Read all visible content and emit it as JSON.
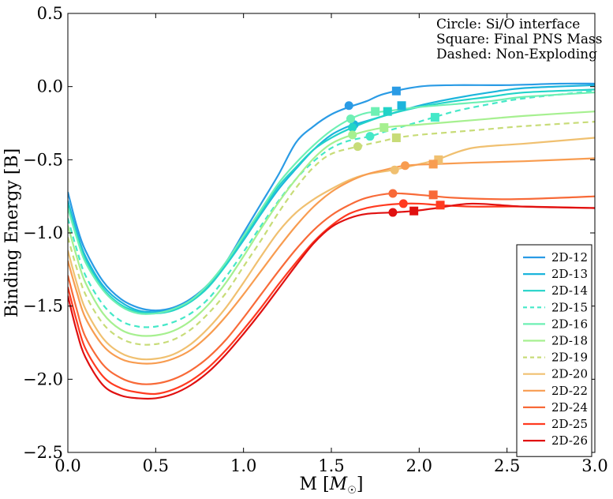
{
  "chart_data": {
    "type": "line",
    "xlabel": "M [",
    "xlabel_unit": "M",
    "xlabel_unit_sub": "☉",
    "xlabel_close": "]",
    "ylabel": "Binding Energy [B]",
    "xlim": [
      0.0,
      3.0
    ],
    "ylim": [
      -2.5,
      0.5
    ],
    "xticks": [
      0.0,
      0.5,
      1.0,
      1.5,
      2.0,
      2.5,
      3.0
    ],
    "xtick_labels": [
      "0.0",
      "0.5",
      "1.0",
      "1.5",
      "2.0",
      "2.5",
      "3.0"
    ],
    "yticks": [
      0.5,
      0.0,
      -0.5,
      -1.0,
      -1.5,
      -2.0,
      -2.5
    ],
    "ytick_labels": [
      "0.5",
      "0.0",
      "−0.5",
      "−1.0",
      "−1.5",
      "−2.0",
      "−2.5"
    ],
    "annotations": [
      "Circle: Si/O interface",
      "Square: Final PNS Mass",
      "Dashed: Non-Exploding"
    ],
    "legend_position": "lower-right",
    "series": [
      {
        "name": "2D-12",
        "color": "#2a9be5",
        "dashed": false,
        "x": [
          0.0,
          0.05,
          0.1,
          0.2,
          0.3,
          0.4,
          0.5,
          0.6,
          0.7,
          0.8,
          0.9,
          1.0,
          1.1,
          1.2,
          1.3,
          1.4,
          1.5,
          1.6,
          1.7,
          1.8,
          2.0,
          2.2,
          2.5,
          2.8,
          3.0
        ],
        "y": [
          -0.72,
          -0.95,
          -1.12,
          -1.33,
          -1.45,
          -1.51,
          -1.53,
          -1.51,
          -1.45,
          -1.35,
          -1.2,
          -1.0,
          -0.8,
          -0.6,
          -0.38,
          -0.27,
          -0.19,
          -0.14,
          -0.1,
          -0.05,
          0.0,
          0.01,
          0.01,
          0.02,
          0.02
        ],
        "marker_circle": [
          1.6,
          -0.13
        ],
        "marker_square": [
          1.87,
          -0.03
        ]
      },
      {
        "name": "2D-13",
        "color": "#1cb5dc",
        "dashed": false,
        "x": [
          0.0,
          0.05,
          0.1,
          0.2,
          0.3,
          0.4,
          0.5,
          0.6,
          0.7,
          0.8,
          0.9,
          1.0,
          1.1,
          1.2,
          1.3,
          1.4,
          1.5,
          1.6,
          1.63,
          1.8,
          2.0,
          2.2,
          2.4,
          2.6,
          3.0
        ],
        "y": [
          -0.78,
          -0.99,
          -1.16,
          -1.36,
          -1.47,
          -1.53,
          -1.54,
          -1.52,
          -1.46,
          -1.36,
          -1.22,
          -1.05,
          -0.87,
          -0.7,
          -0.56,
          -0.43,
          -0.33,
          -0.27,
          -0.26,
          -0.2,
          -0.13,
          -0.08,
          -0.04,
          -0.01,
          0.01
        ],
        "marker_circle": [
          1.63,
          -0.26
        ],
        "marker_square": [
          1.9,
          -0.13
        ]
      },
      {
        "name": "2D-14",
        "color": "#22d3c8",
        "dashed": false,
        "x": [
          0.0,
          0.05,
          0.1,
          0.2,
          0.3,
          0.4,
          0.5,
          0.6,
          0.7,
          0.8,
          0.9,
          1.0,
          1.1,
          1.2,
          1.3,
          1.4,
          1.5,
          1.62,
          1.8,
          2.0,
          2.2,
          2.4,
          2.6,
          3.0
        ],
        "y": [
          -0.8,
          -1.01,
          -1.18,
          -1.38,
          -1.49,
          -1.54,
          -1.55,
          -1.53,
          -1.47,
          -1.37,
          -1.22,
          -1.04,
          -0.86,
          -0.68,
          -0.55,
          -0.43,
          -0.35,
          -0.28,
          -0.2,
          -0.14,
          -0.1,
          -0.07,
          -0.04,
          -0.02
        ],
        "marker_circle": [
          1.62,
          -0.28
        ],
        "marker_square": [
          1.82,
          -0.17
        ]
      },
      {
        "name": "2D-15",
        "color": "#45e8c8",
        "dashed": true,
        "x": [
          0.0,
          0.05,
          0.1,
          0.2,
          0.3,
          0.4,
          0.5,
          0.6,
          0.7,
          0.8,
          0.9,
          1.0,
          1.1,
          1.2,
          1.3,
          1.4,
          1.5,
          1.6,
          1.72,
          1.8,
          2.0,
          2.2,
          2.4,
          2.6,
          3.0
        ],
        "y": [
          -0.9,
          -1.11,
          -1.29,
          -1.49,
          -1.6,
          -1.64,
          -1.64,
          -1.61,
          -1.55,
          -1.45,
          -1.3,
          -1.13,
          -0.95,
          -0.78,
          -0.63,
          -0.51,
          -0.42,
          -0.37,
          -0.34,
          -0.31,
          -0.24,
          -0.17,
          -0.12,
          -0.08,
          -0.03
        ],
        "marker_circle": [
          1.72,
          -0.34
        ],
        "marker_square": [
          2.09,
          -0.21
        ]
      },
      {
        "name": "2D-16",
        "color": "#6ef0b4",
        "dashed": false,
        "x": [
          0.0,
          0.05,
          0.1,
          0.2,
          0.3,
          0.4,
          0.5,
          0.6,
          0.7,
          0.8,
          0.9,
          1.0,
          1.1,
          1.2,
          1.3,
          1.4,
          1.5,
          1.61,
          1.7,
          1.8,
          2.0,
          2.2,
          2.4,
          2.6,
          3.0
        ],
        "y": [
          -0.83,
          -1.03,
          -1.2,
          -1.39,
          -1.5,
          -1.55,
          -1.55,
          -1.52,
          -1.46,
          -1.35,
          -1.2,
          -1.02,
          -0.84,
          -0.66,
          -0.52,
          -0.4,
          -0.3,
          -0.22,
          -0.18,
          -0.17,
          -0.14,
          -0.12,
          -0.1,
          -0.07,
          -0.04
        ],
        "marker_circle": [
          1.61,
          -0.22
        ],
        "marker_square": [
          1.75,
          -0.17
        ]
      },
      {
        "name": "2D-18",
        "color": "#a6f090",
        "dashed": false,
        "x": [
          0.0,
          0.05,
          0.1,
          0.2,
          0.3,
          0.4,
          0.5,
          0.6,
          0.7,
          0.8,
          0.9,
          1.0,
          1.1,
          1.2,
          1.3,
          1.4,
          1.5,
          1.62,
          1.8,
          2.0,
          2.2,
          2.4,
          2.6,
          3.0
        ],
        "y": [
          -0.95,
          -1.16,
          -1.34,
          -1.55,
          -1.66,
          -1.7,
          -1.7,
          -1.67,
          -1.6,
          -1.49,
          -1.34,
          -1.16,
          -0.97,
          -0.79,
          -0.63,
          -0.49,
          -0.39,
          -0.33,
          -0.28,
          -0.26,
          -0.24,
          -0.22,
          -0.2,
          -0.17
        ],
        "marker_circle": [
          1.62,
          -0.33
        ],
        "marker_square": [
          1.8,
          -0.28
        ]
      },
      {
        "name": "2D-19",
        "color": "#c8dc78",
        "dashed": true,
        "x": [
          0.0,
          0.05,
          0.1,
          0.2,
          0.3,
          0.4,
          0.5,
          0.6,
          0.7,
          0.8,
          0.9,
          1.0,
          1.1,
          1.2,
          1.3,
          1.4,
          1.5,
          1.65,
          1.8,
          1.87,
          2.0,
          2.2,
          2.4,
          2.6,
          3.0
        ],
        "y": [
          -1.03,
          -1.24,
          -1.42,
          -1.62,
          -1.72,
          -1.76,
          -1.76,
          -1.73,
          -1.66,
          -1.55,
          -1.41,
          -1.23,
          -1.05,
          -0.86,
          -0.69,
          -0.55,
          -0.46,
          -0.41,
          -0.37,
          -0.35,
          -0.33,
          -0.31,
          -0.29,
          -0.27,
          -0.24
        ],
        "marker_circle": [
          1.65,
          -0.41
        ],
        "marker_square": [
          1.87,
          -0.35
        ]
      },
      {
        "name": "2D-20",
        "color": "#f0c070",
        "dashed": false,
        "x": [
          0.0,
          0.05,
          0.1,
          0.2,
          0.3,
          0.4,
          0.5,
          0.6,
          0.7,
          0.8,
          0.9,
          1.0,
          1.1,
          1.2,
          1.3,
          1.4,
          1.5,
          1.6,
          1.7,
          1.85,
          2.0,
          2.1,
          2.3,
          2.6,
          3.0
        ],
        "y": [
          -1.12,
          -1.34,
          -1.52,
          -1.72,
          -1.82,
          -1.86,
          -1.86,
          -1.83,
          -1.76,
          -1.65,
          -1.51,
          -1.34,
          -1.16,
          -0.99,
          -0.86,
          -0.77,
          -0.7,
          -0.64,
          -0.6,
          -0.57,
          -0.53,
          -0.5,
          -0.42,
          -0.39,
          -0.35
        ],
        "marker_circle": [
          1.86,
          -0.57
        ],
        "marker_square": [
          2.11,
          -0.5
        ]
      },
      {
        "name": "2D-22",
        "color": "#f89c50",
        "dashed": false,
        "x": [
          0.0,
          0.05,
          0.1,
          0.2,
          0.3,
          0.4,
          0.5,
          0.6,
          0.7,
          0.8,
          0.9,
          1.0,
          1.1,
          1.2,
          1.3,
          1.4,
          1.5,
          1.6,
          1.7,
          1.8,
          1.92,
          2.08,
          2.3,
          2.6,
          3.0
        ],
        "y": [
          -1.19,
          -1.4,
          -1.58,
          -1.77,
          -1.86,
          -1.89,
          -1.89,
          -1.86,
          -1.8,
          -1.7,
          -1.57,
          -1.42,
          -1.26,
          -1.1,
          -0.95,
          -0.82,
          -0.72,
          -0.65,
          -0.6,
          -0.57,
          -0.54,
          -0.53,
          -0.52,
          -0.51,
          -0.49
        ],
        "marker_circle": [
          1.92,
          -0.54
        ],
        "marker_square": [
          2.08,
          -0.53
        ]
      },
      {
        "name": "2D-24",
        "color": "#f86a38",
        "dashed": false,
        "x": [
          0.0,
          0.05,
          0.1,
          0.2,
          0.3,
          0.4,
          0.5,
          0.6,
          0.7,
          0.8,
          0.9,
          1.0,
          1.1,
          1.2,
          1.3,
          1.4,
          1.5,
          1.6,
          1.7,
          1.85,
          2.0,
          2.2,
          2.5,
          2.8,
          3.0
        ],
        "y": [
          -1.29,
          -1.52,
          -1.71,
          -1.9,
          -1.99,
          -2.03,
          -2.03,
          -2.0,
          -1.94,
          -1.85,
          -1.73,
          -1.58,
          -1.42,
          -1.26,
          -1.11,
          -0.98,
          -0.88,
          -0.81,
          -0.76,
          -0.73,
          -0.74,
          -0.76,
          -0.77,
          -0.76,
          -0.75
        ],
        "marker_circle": [
          1.85,
          -0.73
        ],
        "marker_square": [
          2.08,
          -0.74
        ]
      },
      {
        "name": "2D-25",
        "color": "#ff3a20",
        "dashed": false,
        "x": [
          0.0,
          0.05,
          0.1,
          0.2,
          0.3,
          0.4,
          0.5,
          0.6,
          0.7,
          0.8,
          0.9,
          1.0,
          1.1,
          1.2,
          1.3,
          1.4,
          1.5,
          1.6,
          1.7,
          1.8,
          1.91,
          2.0,
          2.12,
          2.3,
          2.6,
          3.0
        ],
        "y": [
          -1.37,
          -1.6,
          -1.79,
          -1.98,
          -2.06,
          -2.09,
          -2.1,
          -2.07,
          -2.01,
          -1.92,
          -1.8,
          -1.66,
          -1.51,
          -1.35,
          -1.2,
          -1.06,
          -0.95,
          -0.87,
          -0.83,
          -0.81,
          -0.8,
          -0.8,
          -0.81,
          -0.82,
          -0.82,
          -0.83
        ],
        "marker_circle": [
          1.91,
          -0.8
        ],
        "marker_square": [
          2.12,
          -0.81
        ]
      },
      {
        "name": "2D-26",
        "color": "#e01010",
        "dashed": false,
        "x": [
          0.0,
          0.05,
          0.1,
          0.2,
          0.3,
          0.4,
          0.5,
          0.6,
          0.7,
          0.8,
          0.9,
          1.0,
          1.1,
          1.2,
          1.3,
          1.4,
          1.5,
          1.6,
          1.7,
          1.85,
          1.97,
          2.1,
          2.3,
          2.6,
          3.0
        ],
        "y": [
          -1.43,
          -1.67,
          -1.85,
          -2.04,
          -2.11,
          -2.13,
          -2.13,
          -2.1,
          -2.04,
          -1.95,
          -1.83,
          -1.69,
          -1.54,
          -1.38,
          -1.22,
          -1.07,
          -0.96,
          -0.9,
          -0.87,
          -0.86,
          -0.85,
          -0.83,
          -0.8,
          -0.82,
          -0.83
        ],
        "marker_circle": [
          1.85,
          -0.86
        ],
        "marker_square": [
          1.97,
          -0.85
        ]
      }
    ]
  }
}
